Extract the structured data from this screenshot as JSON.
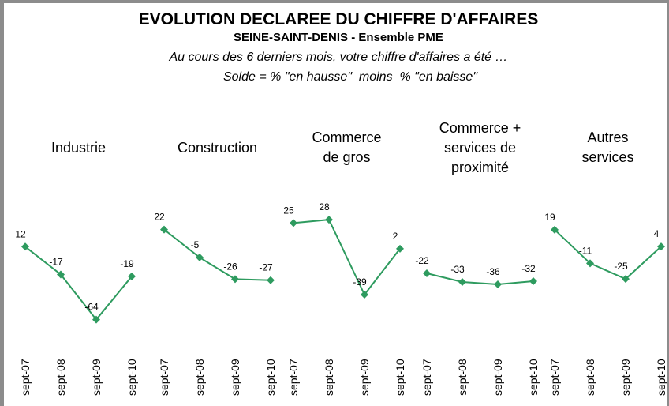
{
  "header": {
    "title": "EVOLUTION DECLAREE DU CHIFFRE D'AFFAIRES",
    "subtitle": "SEINE-SAINT-DENIS - Ensemble PME",
    "question": "Au cours des 6 derniers mois, votre chiffre d'affaires a été …",
    "definition": "Solde = % \"en hausse\"  moins  % \"en baisse\""
  },
  "chart_data": [
    {
      "type": "line",
      "title": "Industrie",
      "categories": [
        "sept-07",
        "sept-08",
        "sept-09",
        "sept-10"
      ],
      "values": [
        12,
        -17,
        -64,
        -19
      ],
      "color": "#2e9b5f",
      "ylim": [
        -80,
        60
      ]
    },
    {
      "type": "line",
      "title": "Construction",
      "categories": [
        "sept-07",
        "sept-08",
        "sept-09",
        "sept-10"
      ],
      "values": [
        22,
        -5,
        -26,
        -27
      ],
      "color": "#2e9b5f",
      "ylim": [
        -80,
        50
      ]
    },
    {
      "type": "line",
      "title": "Commerce\nde gros",
      "categories": [
        "sept-07",
        "sept-08",
        "sept-09",
        "sept-10"
      ],
      "values": [
        25,
        28,
        -39,
        2
      ],
      "color": "#2e9b5f",
      "ylim": [
        -75,
        45
      ]
    },
    {
      "type": "line",
      "title": "Commerce +\nservices de\nproximité",
      "categories": [
        "sept-07",
        "sept-08",
        "sept-09",
        "sept-10"
      ],
      "values": [
        -22,
        -33,
        -36,
        -32
      ],
      "color": "#2e9b5f",
      "ylim": [
        -100,
        70
      ]
    },
    {
      "type": "line",
      "title": "Autres\nservices",
      "categories": [
        "sept-07",
        "sept-08",
        "sept-09",
        "sept-10"
      ],
      "values": [
        19,
        -11,
        -25,
        4
      ],
      "color": "#2e9b5f",
      "ylim": [
        -75,
        45
      ]
    }
  ]
}
